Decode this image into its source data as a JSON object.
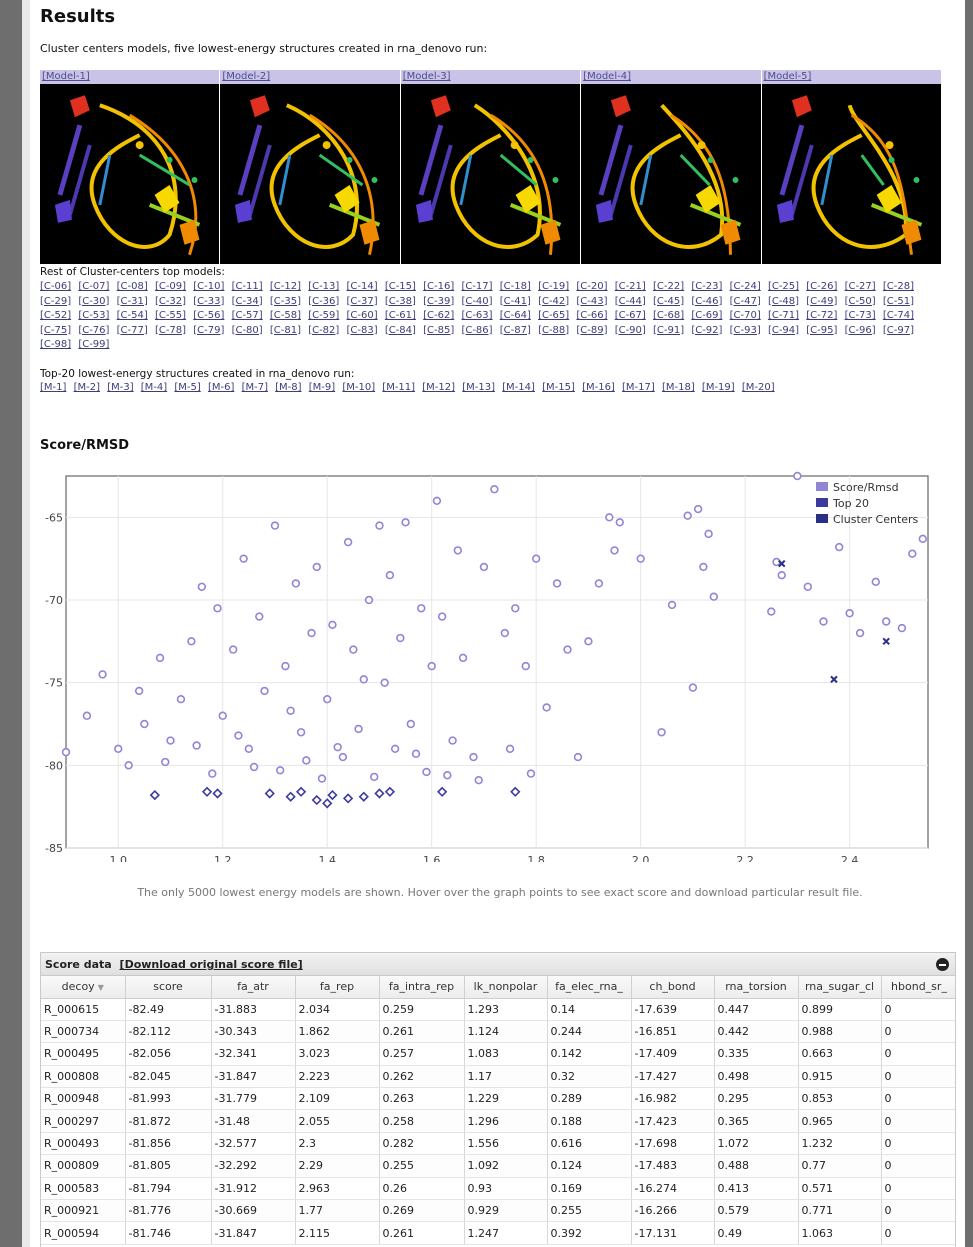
{
  "results_title": "Results",
  "subtitle": "Cluster centers models, five lowest-energy structures created in rna_denovo run:",
  "models": [
    {
      "label": "[Model-1]"
    },
    {
      "label": "[Model-2]"
    },
    {
      "label": "[Model-3]"
    },
    {
      "label": "[Model-4]"
    },
    {
      "label": "[Model-5]"
    }
  ],
  "rest_title": "Rest of Cluster-centers top models:",
  "cluster_links": [
    "[C-06]",
    "[C-07]",
    "[C-08]",
    "[C-09]",
    "[C-10]",
    "[C-11]",
    "[C-12]",
    "[C-13]",
    "[C-14]",
    "[C-15]",
    "[C-16]",
    "[C-17]",
    "[C-18]",
    "[C-19]",
    "[C-20]",
    "[C-21]",
    "[C-22]",
    "[C-23]",
    "[C-24]",
    "[C-25]",
    "[C-26]",
    "[C-27]",
    "[C-28]",
    "[C-29]",
    "[C-30]",
    "[C-31]",
    "[C-32]",
    "[C-33]",
    "[C-34]",
    "[C-35]",
    "[C-36]",
    "[C-37]",
    "[C-38]",
    "[C-39]",
    "[C-40]",
    "[C-41]",
    "[C-42]",
    "[C-43]",
    "[C-44]",
    "[C-45]",
    "[C-46]",
    "[C-47]",
    "[C-48]",
    "[C-49]",
    "[C-50]",
    "[C-51]",
    "[C-52]",
    "[C-53]",
    "[C-54]",
    "[C-55]",
    "[C-56]",
    "[C-57]",
    "[C-58]",
    "[C-59]",
    "[C-60]",
    "[C-61]",
    "[C-62]",
    "[C-63]",
    "[C-64]",
    "[C-65]",
    "[C-66]",
    "[C-67]",
    "[C-68]",
    "[C-69]",
    "[C-70]",
    "[C-71]",
    "[C-72]",
    "[C-73]",
    "[C-74]",
    "[C-75]",
    "[C-76]",
    "[C-77]",
    "[C-78]",
    "[C-79]",
    "[C-80]",
    "[C-81]",
    "[C-82]",
    "[C-83]",
    "[C-84]",
    "[C-85]",
    "[C-86]",
    "[C-87]",
    "[C-88]",
    "[C-89]",
    "[C-90]",
    "[C-91]",
    "[C-92]",
    "[C-93]",
    "[C-94]",
    "[C-95]",
    "[C-96]",
    "[C-97]",
    "[C-98]",
    "[C-99]"
  ],
  "top20_title": "Top-20 lowest-energy structures created in rna_denovo run:",
  "model_links": [
    "[M-1]",
    "[M-2]",
    "[M-3]",
    "[M-4]",
    "[M-5]",
    "[M-6]",
    "[M-7]",
    "[M-8]",
    "[M-9]",
    "[M-10]",
    "[M-11]",
    "[M-12]",
    "[M-13]",
    "[M-14]",
    "[M-15]",
    "[M-16]",
    "[M-17]",
    "[M-18]",
    "[M-19]",
    "[M-20]"
  ],
  "score_title": "Score/RMSD",
  "chart_data": {
    "type": "scatter",
    "xlim": [
      0.9,
      2.55
    ],
    "ylim": [
      -85,
      -62.5
    ],
    "x_ticks": [
      "1.0",
      "1.2",
      "1.4",
      "1.6",
      "1.8",
      "2.0",
      "2.2",
      "2.4"
    ],
    "x_tick_values": [
      1.0,
      1.2,
      1.4,
      1.6,
      1.8,
      2.0,
      2.2,
      2.4
    ],
    "y_ticks": [
      "-65",
      "-70",
      "-75",
      "-80",
      "-85"
    ],
    "y_tick_values": [
      -65,
      -70,
      -75,
      -80,
      -85
    ],
    "grid": true,
    "legend_position": "top-right",
    "legend": [
      "Score/Rmsd",
      "Top 20",
      "Cluster Centers"
    ],
    "series": [
      {
        "name": "Score/Rmsd",
        "color": "#8f86d6",
        "points": [
          [
            0.9,
            -79.2
          ],
          [
            0.94,
            -77
          ],
          [
            0.97,
            -74.5
          ],
          [
            1.0,
            -79
          ],
          [
            1.02,
            -80
          ],
          [
            1.04,
            -75.5
          ],
          [
            1.05,
            -77.5
          ],
          [
            1.08,
            -73.5
          ],
          [
            1.09,
            -79.8
          ],
          [
            1.1,
            -78.5
          ],
          [
            1.12,
            -76
          ],
          [
            1.14,
            -72.5
          ],
          [
            1.15,
            -78.8
          ],
          [
            1.16,
            -69.2
          ],
          [
            1.18,
            -80.5
          ],
          [
            1.19,
            -70.5
          ],
          [
            1.2,
            -77
          ],
          [
            1.22,
            -73
          ],
          [
            1.24,
            -67.5
          ],
          [
            1.25,
            -79
          ],
          [
            1.27,
            -71
          ],
          [
            1.28,
            -75.5
          ],
          [
            1.3,
            -65.5
          ],
          [
            1.31,
            -80.3
          ],
          [
            1.32,
            -74
          ],
          [
            1.34,
            -69
          ],
          [
            1.35,
            -78
          ],
          [
            1.37,
            -72
          ],
          [
            1.38,
            -68
          ],
          [
            1.39,
            -80.8
          ],
          [
            1.4,
            -76
          ],
          [
            1.41,
            -71.5
          ],
          [
            1.43,
            -79.5
          ],
          [
            1.44,
            -66.5
          ],
          [
            1.45,
            -73
          ],
          [
            1.46,
            -77.8
          ],
          [
            1.48,
            -70
          ],
          [
            1.49,
            -80.7
          ],
          [
            1.5,
            -65.5
          ],
          [
            1.51,
            -75
          ],
          [
            1.52,
            -68.5
          ],
          [
            1.53,
            -79
          ],
          [
            1.54,
            -72.3
          ],
          [
            1.55,
            -65.3
          ],
          [
            1.56,
            -77.5
          ],
          [
            1.58,
            -70.5
          ],
          [
            1.59,
            -80.4
          ],
          [
            1.6,
            -74
          ],
          [
            1.61,
            -64
          ],
          [
            1.62,
            -71
          ],
          [
            1.64,
            -78.5
          ],
          [
            1.65,
            -67
          ],
          [
            1.66,
            -73.5
          ],
          [
            1.68,
            -79.5
          ],
          [
            1.7,
            -68
          ],
          [
            1.72,
            -63.3
          ],
          [
            1.74,
            -72
          ],
          [
            1.75,
            -79
          ],
          [
            1.76,
            -70.5
          ],
          [
            1.78,
            -74
          ],
          [
            1.79,
            -80.5
          ],
          [
            1.8,
            -67.5
          ],
          [
            1.82,
            -76.5
          ],
          [
            1.84,
            -69
          ],
          [
            1.86,
            -73
          ],
          [
            1.88,
            -79.5
          ],
          [
            1.9,
            -72.5
          ],
          [
            1.92,
            -69
          ],
          [
            1.94,
            -65
          ],
          [
            1.95,
            -67
          ],
          [
            1.96,
            -65.3
          ],
          [
            2.0,
            -67.5
          ],
          [
            2.04,
            -78
          ],
          [
            2.06,
            -70.3
          ],
          [
            2.09,
            -64.9
          ],
          [
            2.1,
            -75.3
          ],
          [
            2.11,
            -64.5
          ],
          [
            2.12,
            -68
          ],
          [
            2.13,
            -66
          ],
          [
            2.14,
            -69.8
          ],
          [
            2.25,
            -70.7
          ],
          [
            2.26,
            -67.7
          ],
          [
            2.27,
            -68.5
          ],
          [
            2.32,
            -69.2
          ],
          [
            2.35,
            -71.3
          ],
          [
            2.38,
            -66.8
          ],
          [
            2.4,
            -70.8
          ],
          [
            2.42,
            -72
          ],
          [
            2.45,
            -68.9
          ],
          [
            2.47,
            -71.3
          ],
          [
            2.5,
            -71.7
          ],
          [
            2.52,
            -67.2
          ],
          [
            2.54,
            -66.3
          ],
          [
            2.3,
            -62.5
          ],
          [
            1.47,
            -74.8
          ],
          [
            1.33,
            -76.7
          ],
          [
            1.23,
            -78.2
          ],
          [
            1.36,
            -79.7
          ],
          [
            1.42,
            -78.9
          ],
          [
            1.26,
            -80.1
          ],
          [
            1.57,
            -79.3
          ],
          [
            1.63,
            -80.6
          ],
          [
            1.69,
            -80.9
          ]
        ]
      },
      {
        "name": "Top 20",
        "color": "#3d3a9e",
        "points": [
          [
            1.07,
            -81.8
          ],
          [
            1.17,
            -81.6
          ],
          [
            1.19,
            -81.7
          ],
          [
            1.29,
            -81.7
          ],
          [
            1.33,
            -81.9
          ],
          [
            1.35,
            -81.6
          ],
          [
            1.38,
            -82.1
          ],
          [
            1.4,
            -82.3
          ],
          [
            1.41,
            -81.8
          ],
          [
            1.44,
            -82
          ],
          [
            1.47,
            -81.9
          ],
          [
            1.5,
            -81.7
          ],
          [
            1.52,
            -81.6
          ],
          [
            1.62,
            -81.6
          ],
          [
            1.76,
            -81.6
          ]
        ]
      },
      {
        "name": "Cluster Centers",
        "color": "#2a2f86",
        "points": [
          [
            2.27,
            -67.8
          ],
          [
            2.37,
            -74.8
          ],
          [
            2.47,
            -72.5
          ]
        ]
      }
    ]
  },
  "note": "The only 5000 lowest energy models are shown. Hover over the graph points to see exact score and download particular result file.",
  "grid": {
    "title": "Score data",
    "download_label": "[Download original score file]",
    "columns": [
      "decoy",
      "score",
      "fa_atr",
      "fa_rep",
      "fa_intra_rep",
      "lk_nonpolar",
      "fa_elec_rna_",
      "ch_bond",
      "rna_torsion",
      "rna_sugar_cl",
      "hbond_sr_"
    ],
    "rows": [
      [
        "R_000615",
        "-82.49",
        "-31.883",
        "2.034",
        "0.259",
        "1.293",
        "0.14",
        "-17.639",
        "0.447",
        "0.899",
        "0"
      ],
      [
        "R_000734",
        "-82.112",
        "-30.343",
        "1.862",
        "0.261",
        "1.124",
        "0.244",
        "-16.851",
        "0.442",
        "0.988",
        "0"
      ],
      [
        "R_000495",
        "-82.056",
        "-32.341",
        "3.023",
        "0.257",
        "1.083",
        "0.142",
        "-17.409",
        "0.335",
        "0.663",
        "0"
      ],
      [
        "R_000808",
        "-82.045",
        "-31.847",
        "2.223",
        "0.262",
        "1.17",
        "0.32",
        "-17.427",
        "0.498",
        "0.915",
        "0"
      ],
      [
        "R_000948",
        "-81.993",
        "-31.779",
        "2.109",
        "0.263",
        "1.229",
        "0.289",
        "-16.982",
        "0.295",
        "0.853",
        "0"
      ],
      [
        "R_000297",
        "-81.872",
        "-31.48",
        "2.055",
        "0.258",
        "1.296",
        "0.188",
        "-17.423",
        "0.365",
        "0.965",
        "0"
      ],
      [
        "R_000493",
        "-81.856",
        "-32.577",
        "2.3",
        "0.282",
        "1.556",
        "0.616",
        "-17.698",
        "1.072",
        "1.232",
        "0"
      ],
      [
        "R_000809",
        "-81.805",
        "-32.292",
        "2.29",
        "0.255",
        "1.092",
        "0.124",
        "-17.483",
        "0.488",
        "0.77",
        "0"
      ],
      [
        "R_000583",
        "-81.794",
        "-31.912",
        "2.963",
        "0.26",
        "0.93",
        "0.169",
        "-16.274",
        "0.413",
        "0.571",
        "0"
      ],
      [
        "R_000921",
        "-81.776",
        "-30.669",
        "1.77",
        "0.269",
        "0.929",
        "0.255",
        "-16.266",
        "0.579",
        "0.771",
        "0"
      ],
      [
        "R_000594",
        "-81.746",
        "-31.847",
        "2.115",
        "0.261",
        "1.247",
        "0.392",
        "-17.131",
        "0.49",
        "1.063",
        "0"
      ]
    ]
  }
}
